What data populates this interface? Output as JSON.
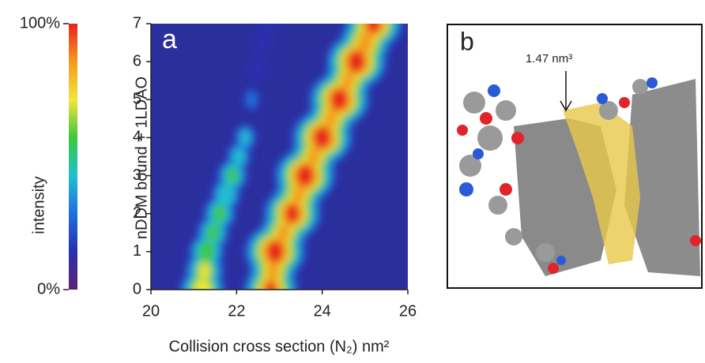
{
  "chart_data": {
    "type": "heatmap",
    "panel_label": "a",
    "xlabel": "Collision cross section (N₂) nm²",
    "ylabel": "nDDM bound + 1LDAO",
    "xlim": [
      20,
      26
    ],
    "xticks": [
      20,
      22,
      24,
      26
    ],
    "ylim": [
      0,
      7
    ],
    "yticks": [
      0,
      1,
      2,
      3,
      4,
      5,
      6,
      7
    ],
    "background": "#2b2f9e",
    "colormap": [
      "#5b2470",
      "#2a2fb0",
      "#1f6fe0",
      "#20c0d0",
      "#3cc83c",
      "#f2e63a",
      "#f39a1e",
      "#e8231c"
    ],
    "colorbar": {
      "label": "intensity",
      "clim": [
        0,
        100
      ],
      "ticks": [
        {
          "value": 0,
          "label": "0%"
        },
        {
          "value": 100,
          "label": "100%"
        }
      ]
    },
    "series": [
      {
        "x": [
          22.8,
          22.85,
          22.9,
          23.1,
          23.3,
          23.45,
          23.6,
          23.8,
          24.0,
          24.2,
          24.4,
          24.6,
          24.8,
          25.0,
          25.2
        ],
        "y": [
          0,
          0.5,
          1,
          1.5,
          2,
          2.5,
          3,
          3.5,
          4,
          4.5,
          5,
          5.5,
          6,
          6.5,
          7
        ],
        "values": [
          90,
          80,
          100,
          80,
          95,
          80,
          100,
          80,
          100,
          80,
          100,
          80,
          100,
          85,
          95
        ]
      },
      {
        "x": [
          21.2,
          21.25,
          21.3,
          21.45,
          21.6,
          21.75,
          21.9,
          22.05,
          22.2,
          22.35,
          22.5,
          22.6,
          22.7
        ],
        "y": [
          0,
          0.5,
          1,
          1.5,
          2,
          2.5,
          3,
          3.5,
          4,
          5,
          5.8,
          6.5,
          7
        ],
        "values": [
          75,
          65,
          60,
          55,
          55,
          50,
          52,
          42,
          38,
          28,
          25,
          25,
          25
        ]
      }
    ]
  },
  "image_panel": {
    "label": "b",
    "annotation": "1.47 nm³"
  }
}
